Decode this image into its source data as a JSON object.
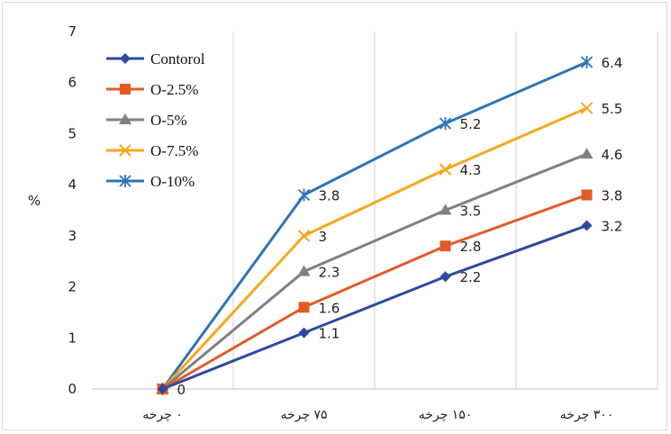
{
  "chart_data": {
    "type": "line",
    "title": "",
    "xlabel": "",
    "ylabel": "%",
    "ylim": [
      0,
      7
    ],
    "yticks": [
      "0",
      "1",
      "2",
      "3",
      "4",
      "5",
      "6",
      "7"
    ],
    "categories": [
      "۰ چرخه",
      "۷۵ چرخه",
      "۱۵۰ چرخه",
      "۳۰۰ چرخه"
    ],
    "grid": "vertical",
    "legend_position": "top-left",
    "series": [
      {
        "name": "Contorol",
        "color": "#2e4a9e",
        "marker": "diamond",
        "values": [
          0,
          1.1,
          2.2,
          3.2
        ],
        "labels": [
          "0",
          "1.1",
          "2.2",
          "3.2"
        ]
      },
      {
        "name": "O-2.5%",
        "color": "#e45a26",
        "marker": "square",
        "values": [
          0,
          1.6,
          2.8,
          3.8
        ],
        "labels": [
          "",
          "1.6",
          "2.8",
          "3.8"
        ]
      },
      {
        "name": "O-5%",
        "color": "#808080",
        "marker": "triangle",
        "values": [
          0,
          2.3,
          3.5,
          4.6
        ],
        "labels": [
          "",
          "2.3",
          "3.5",
          "4.6"
        ]
      },
      {
        "name": "O-7.5%",
        "color": "#f5a81c",
        "marker": "x",
        "values": [
          0,
          3,
          4.3,
          5.5
        ],
        "labels": [
          "",
          "3",
          "4.3",
          "5.5"
        ]
      },
      {
        "name": "O-10%",
        "color": "#2e75b6",
        "marker": "star",
        "values": [
          0,
          3.8,
          5.2,
          6.4
        ],
        "labels": [
          "",
          "3.8",
          "5.2",
          "6.4"
        ]
      }
    ]
  }
}
